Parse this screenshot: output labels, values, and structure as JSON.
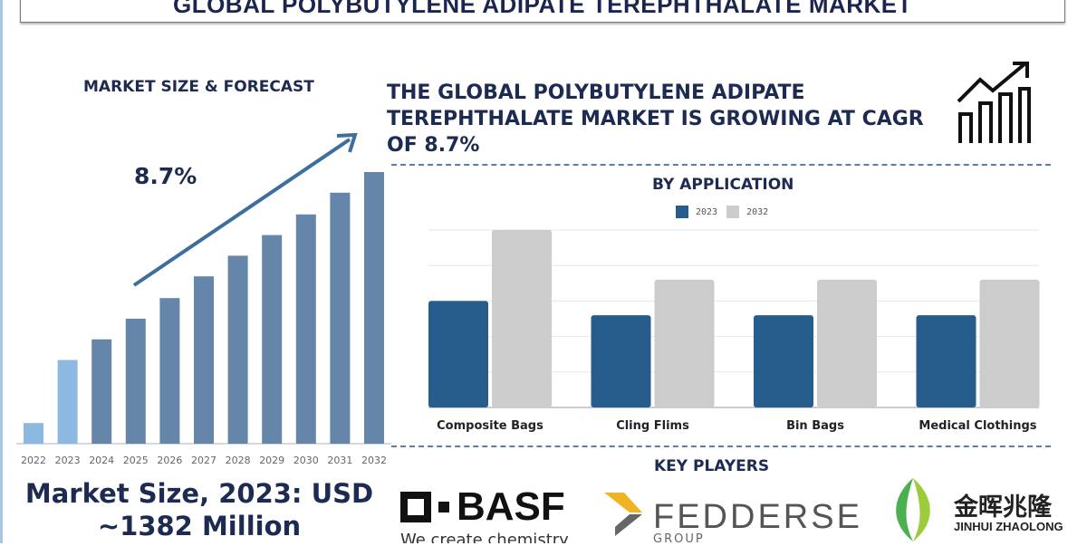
{
  "title": "GLOBAL POLYBUTYLENE ADIPATE TEREPHTHALATE  MARKET",
  "left": {
    "heading": "MARKET SIZE & FORECAST",
    "cagr_label": "8.7%",
    "market_size_line1": "Market Size, 2023: USD",
    "market_size_line2": "~1382 Million"
  },
  "headline": "THE GLOBAL POLYBUTYLENE ADIPATE TEREPHTHALATE MARKET IS GROWING AT CAGR OF 8.7%",
  "key_players": {
    "heading": "KEY PLAYERS",
    "logos": [
      "BASF",
      "We create chemistry",
      "FEDDERSEN",
      "GROUP",
      "金晖兆隆",
      "JINHUI ZHAOLONG"
    ]
  },
  "icons": [
    "growth-chart-icon",
    "trend-arrow-icon"
  ],
  "colors": {
    "navy": "#1d2a52",
    "bar_dark": "#6586a8",
    "bar_light": "#8db8e0",
    "app_2023": "#275d8c",
    "app_2032": "#cccccc"
  },
  "chart_data": [
    {
      "type": "bar",
      "title": "MARKET SIZE & FORECAST",
      "categories": [
        "2022",
        "2023",
        "2024",
        "2025",
        "2026",
        "2027",
        "2028",
        "2029",
        "2030",
        "2031",
        "2032"
      ],
      "values": [
        7.6,
        30.8,
        38.4,
        46,
        53.6,
        61.6,
        69.2,
        76.8,
        84.4,
        92.4,
        100
      ],
      "highlighted": [
        "2022",
        "2023"
      ],
      "annotation": "8.7%",
      "grid": false
    },
    {
      "type": "bar",
      "title": "BY APPLICATION",
      "categories": [
        "Composite Bags",
        "Cling Flims",
        "Bin Bags",
        "Medical Clothings"
      ],
      "series": [
        {
          "name": "2023",
          "values": [
            3,
            2.6,
            2.6,
            2.6
          ]
        },
        {
          "name": "2032",
          "values": [
            5,
            3.6,
            3.6,
            3.6
          ]
        }
      ],
      "ylim": [
        0,
        5
      ],
      "grid": true,
      "legend": "top"
    }
  ]
}
